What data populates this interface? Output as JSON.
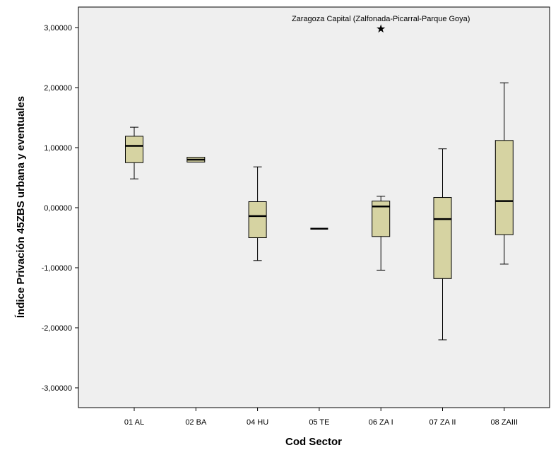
{
  "chart_data": {
    "type": "boxplot",
    "xlabel": "Cod Sector",
    "ylabel": "Índice Privación 45ZBS urbana y eventuales",
    "ylim": [
      -3.4,
      3.35
    ],
    "yticks": [
      3,
      2,
      1,
      0,
      -1,
      -2,
      -3
    ],
    "ytick_labels": [
      "3,00000",
      "2,00000",
      "1,00000",
      "0,00000",
      "-1,00000",
      "-2,00000",
      "-3,00000"
    ],
    "grid": false,
    "box_color": "#d6d3a2",
    "plot_bg": "#efefef",
    "categories": [
      "01 AL",
      "02 BA",
      "04 HU",
      "05 TE",
      "06 ZA I",
      "07 ZA II",
      "08 ZAIII"
    ],
    "boxes": [
      {
        "whisker_low": 0.48,
        "q1": 0.75,
        "median": 1.03,
        "q3": 1.19,
        "whisker_high": 1.34
      },
      {
        "whisker_low": 0.76,
        "q1": 0.76,
        "median": 0.8,
        "q3": 0.84,
        "whisker_high": 0.84
      },
      {
        "whisker_low": -0.88,
        "q1": -0.5,
        "median": -0.14,
        "q3": 0.1,
        "whisker_high": 0.68
      },
      {
        "whisker_low": -0.35,
        "q1": -0.35,
        "median": -0.35,
        "q3": -0.35,
        "whisker_high": -0.35
      },
      {
        "whisker_low": -1.04,
        "q1": -0.48,
        "median": 0.02,
        "q3": 0.11,
        "whisker_high": 0.19,
        "outliers": [
          3.0
        ]
      },
      {
        "whisker_low": -2.2,
        "q1": -1.18,
        "median": -0.19,
        "q3": 0.17,
        "whisker_high": 0.98
      },
      {
        "whisker_low": -0.94,
        "q1": -0.45,
        "median": 0.11,
        "q3": 1.12,
        "whisker_high": 2.08
      }
    ],
    "annotations": [
      {
        "text": "Zaragoza Capital (Zalfonada-Picarral-Parque Goya)",
        "category": "06 ZA I",
        "y": 3.0
      }
    ]
  }
}
